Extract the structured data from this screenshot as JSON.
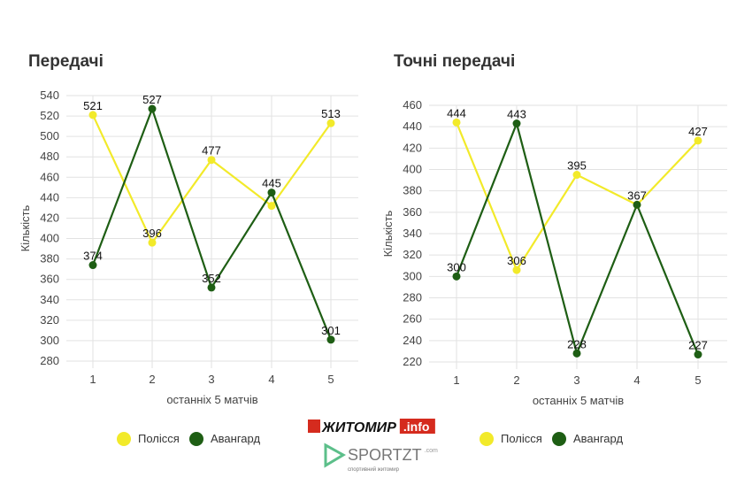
{
  "chart_data": [
    {
      "type": "line",
      "title": "Передачі",
      "xlabel": "останніх 5 матчів",
      "ylabel": "Кількість",
      "categories": [
        "1",
        "2",
        "3",
        "4",
        "5"
      ],
      "ylim": [
        280,
        540
      ],
      "ystep": 20,
      "series": [
        {
          "name": "Полісся",
          "color": "#f2ea2a",
          "values": [
            521,
            396,
            477,
            432,
            513
          ],
          "labels": [
            "521",
            "396",
            "477",
            "",
            "513"
          ]
        },
        {
          "name": "Авангард",
          "color": "#1e5e14",
          "values": [
            374,
            527,
            352,
            445,
            301
          ],
          "labels": [
            "374",
            "527",
            "352",
            "445",
            "301"
          ]
        }
      ]
    },
    {
      "type": "line",
      "title": "Точні передачі",
      "xlabel": "останніх 5 матчів",
      "ylabel": "Кількість",
      "categories": [
        "1",
        "2",
        "3",
        "4",
        "5"
      ],
      "ylim": [
        220,
        460
      ],
      "ystep": 20,
      "series": [
        {
          "name": "Полісся",
          "color": "#f2ea2a",
          "values": [
            444,
            306,
            395,
            367,
            427
          ],
          "labels": [
            "444",
            "306",
            "395",
            "",
            "427"
          ]
        },
        {
          "name": "Авангард",
          "color": "#1e5e14",
          "values": [
            300,
            443,
            228,
            367,
            227
          ],
          "labels": [
            "300",
            "443",
            "228",
            "367",
            "227"
          ]
        }
      ]
    }
  ],
  "logos": {
    "zhytomyr": "ЖИТОМИР.info",
    "sportzt": "SPORTZT",
    "sportzt_sub": "спортивний житомир",
    "sportzt_com": ".com"
  }
}
